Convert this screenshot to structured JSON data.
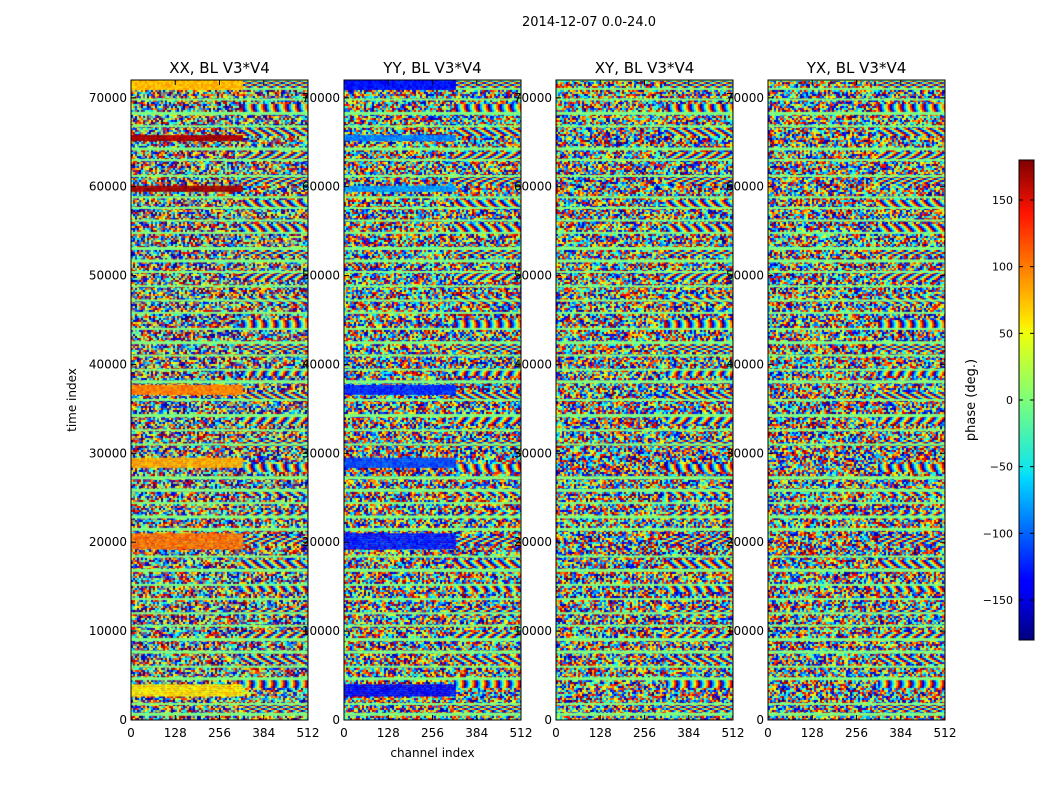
{
  "figure": {
    "suptitle": "2014-12-07 0.0-24.0"
  },
  "chart_data": [
    {
      "type": "heatmap",
      "title": "XX, BL V3*V4",
      "xlabel": "",
      "ylabel": "time index",
      "xlim": [
        0,
        512
      ],
      "ylim": [
        0,
        72000
      ],
      "x_ticks": [
        0,
        128,
        256,
        384,
        512
      ],
      "y_ticks": [
        0,
        10000,
        20000,
        30000,
        40000,
        50000,
        60000,
        70000
      ],
      "bands": [
        {
          "y_range": [
            71000,
            72000
          ],
          "phase": 70
        },
        {
          "y_range": [
            65200,
            65800
          ],
          "phase": 165
        },
        {
          "y_range": [
            59500,
            60100
          ],
          "phase": 170
        },
        {
          "y_range": [
            36700,
            37700
          ],
          "phase": 90
        },
        {
          "y_range": [
            28500,
            29500
          ],
          "phase": 75
        },
        {
          "y_range": [
            19400,
            21000
          ],
          "phase": 95
        },
        {
          "y_range": [
            2800,
            4000
          ],
          "phase": 55
        }
      ]
    },
    {
      "type": "heatmap",
      "title": "YY, BL V3*V4",
      "xlabel": "channel index",
      "ylabel": "",
      "xlim": [
        0,
        512
      ],
      "ylim": [
        0,
        72000
      ],
      "x_ticks": [
        0,
        128,
        256,
        384,
        512
      ],
      "y_ticks": [
        0,
        10000,
        20000,
        30000,
        40000,
        50000,
        60000,
        70000
      ],
      "bands": [
        {
          "y_range": [
            71000,
            72000
          ],
          "phase": -130
        },
        {
          "y_range": [
            65200,
            65800
          ],
          "phase": -90
        },
        {
          "y_range": [
            59500,
            60100
          ],
          "phase": -80
        },
        {
          "y_range": [
            36700,
            37700
          ],
          "phase": -120
        },
        {
          "y_range": [
            28500,
            29500
          ],
          "phase": -110
        },
        {
          "y_range": [
            19400,
            21000
          ],
          "phase": -125
        },
        {
          "y_range": [
            2800,
            4000
          ],
          "phase": -135
        }
      ]
    },
    {
      "type": "heatmap",
      "title": "XY, BL V3*V4",
      "xlabel": "",
      "ylabel": "",
      "xlim": [
        0,
        512
      ],
      "ylim": [
        0,
        72000
      ],
      "x_ticks": [
        0,
        128,
        256,
        384,
        512
      ],
      "y_ticks": [
        0,
        10000,
        20000,
        30000,
        40000,
        50000,
        60000,
        70000
      ],
      "bands": []
    },
    {
      "type": "heatmap",
      "title": "YX, BL V3*V4",
      "xlabel": "",
      "ylabel": "",
      "xlim": [
        0,
        512
      ],
      "ylim": [
        0,
        72000
      ],
      "x_ticks": [
        0,
        128,
        256,
        384,
        512
      ],
      "y_ticks": [
        0,
        10000,
        20000,
        30000,
        40000,
        50000,
        60000,
        70000
      ],
      "bands": []
    }
  ],
  "colorbar": {
    "label": "phase (deg.)",
    "range": [
      -180,
      180
    ],
    "ticks": [
      150,
      100,
      50,
      0,
      -50,
      -100,
      -150
    ],
    "tick_labels": [
      "150",
      "100",
      "50",
      "0",
      "−50",
      "−100",
      "−150"
    ],
    "colormap": "jet"
  },
  "flagged_rows": [
    72000,
    71000,
    69800,
    68300,
    66800,
    64300,
    63000,
    61200,
    58800,
    57600,
    56200,
    54800,
    53100,
    51700,
    50400,
    48800,
    47200,
    45800,
    44000,
    42500,
    41000,
    39400,
    38100,
    36000,
    34300,
    32600,
    31000,
    27300,
    25900,
    24400,
    22900,
    21500,
    18400,
    16900,
    15200,
    13600,
    12000,
    10600,
    9100,
    7700,
    6000,
    4700,
    1800,
    700
  ]
}
